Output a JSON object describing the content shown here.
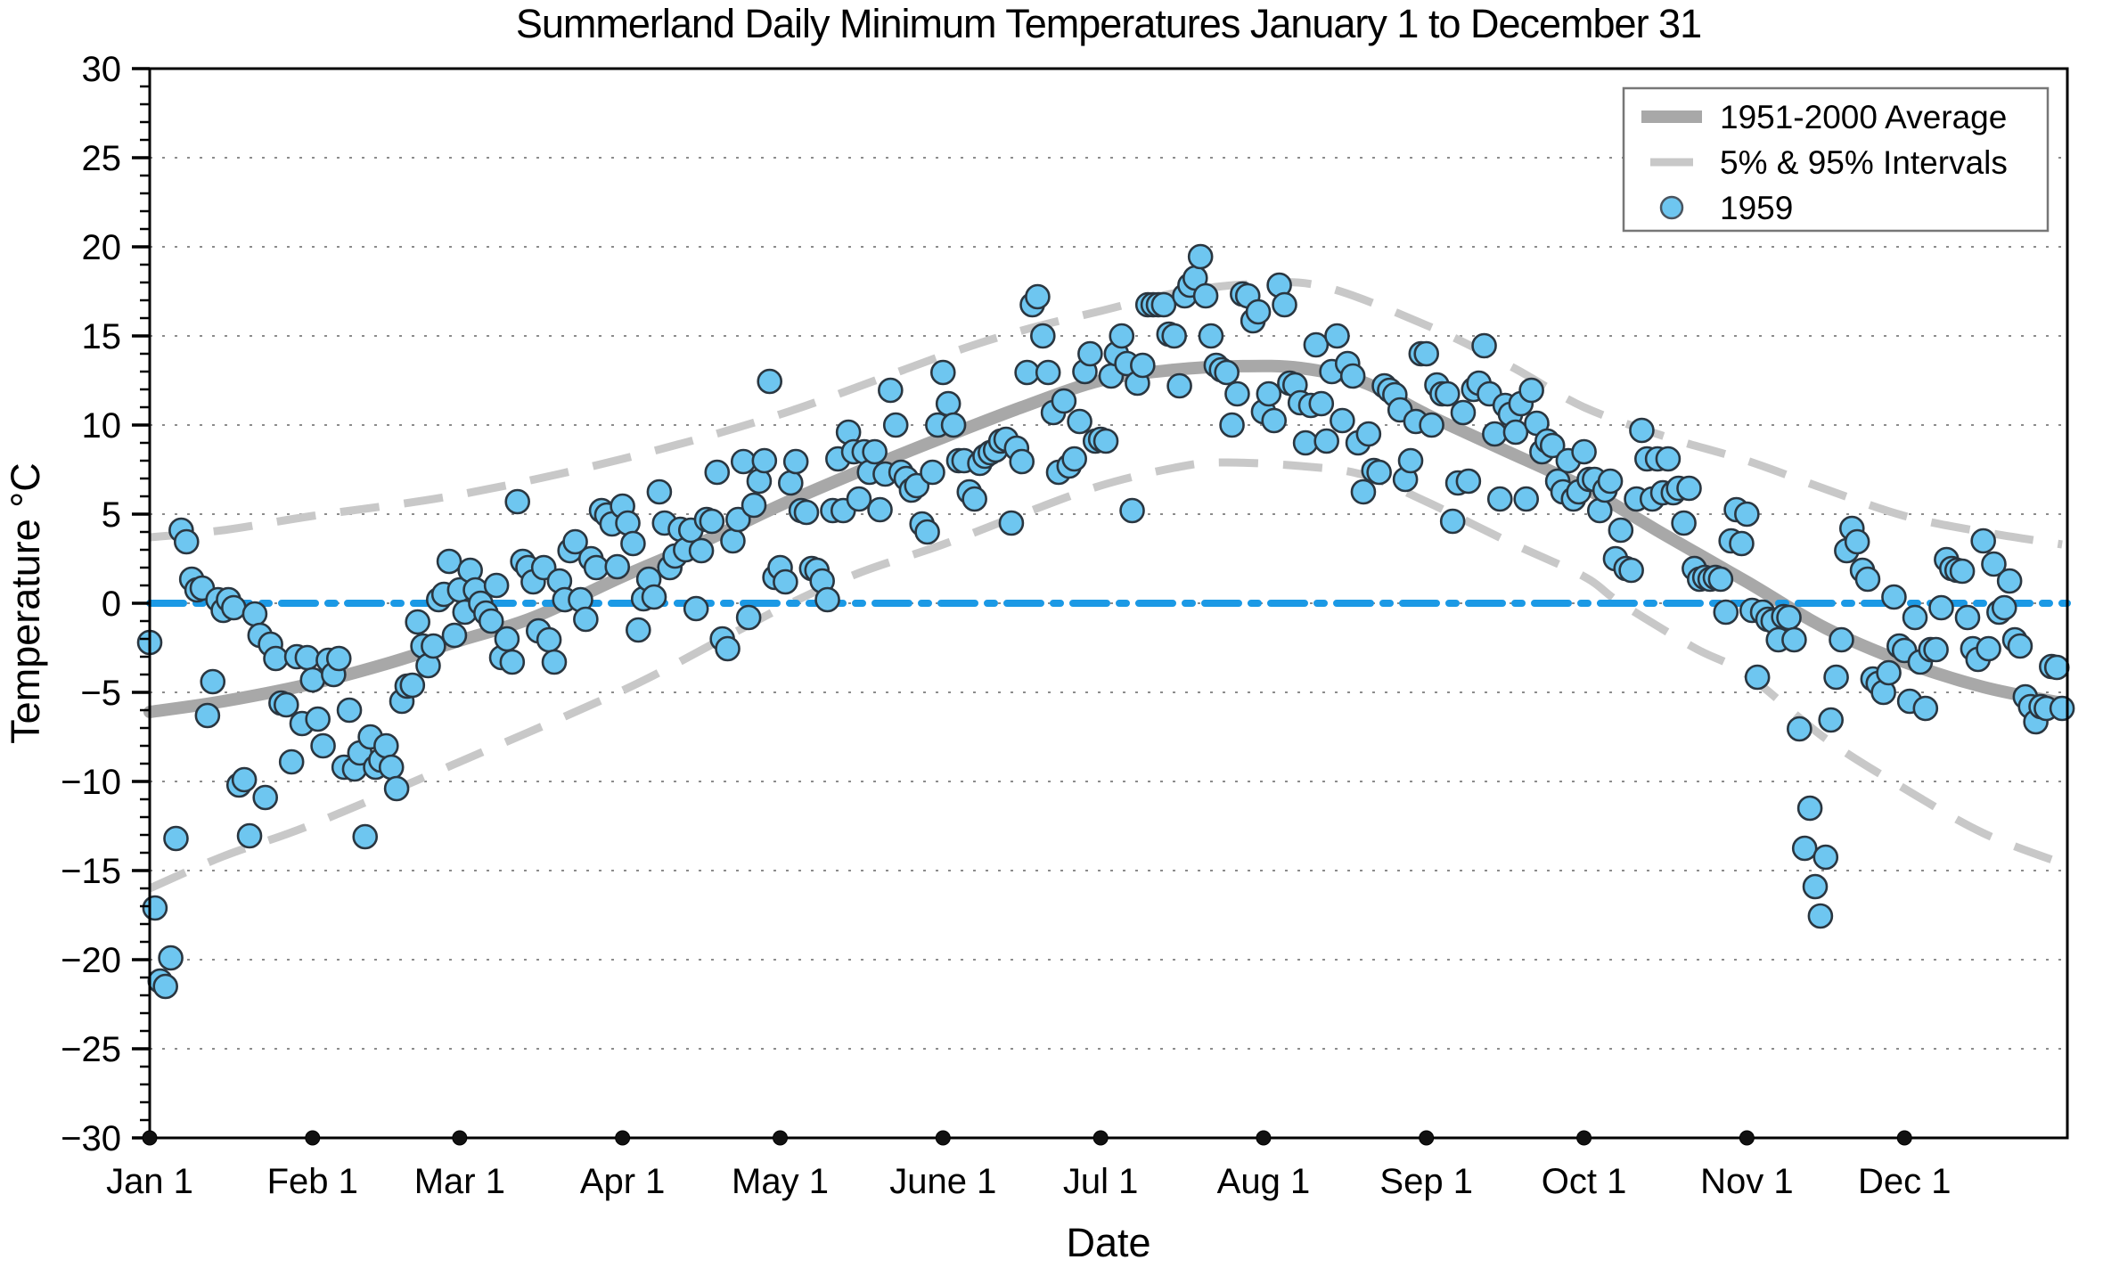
{
  "chart_data": {
    "type": "scatter",
    "title": "Summerland Daily Minimum Temperatures January 1 to December 31",
    "xlabel": "Date",
    "ylabel": "Temperature °C",
    "ylim": [
      -30,
      30
    ],
    "y_ticks": [
      30,
      25,
      20,
      15,
      10,
      5,
      0,
      -5,
      -10,
      -15,
      -20,
      -25,
      -30
    ],
    "y_minor_tick_step": 1,
    "grid": "horizontal dotted lines every 5 degrees",
    "x_range_days": [
      1,
      365
    ],
    "x_ticks": [
      {
        "label": "Jan 1",
        "day": 1
      },
      {
        "label": "Feb 1",
        "day": 32
      },
      {
        "label": "Mar 1",
        "day": 60
      },
      {
        "label": "Apr 1",
        "day": 91
      },
      {
        "label": "May 1",
        "day": 121
      },
      {
        "label": "June 1",
        "day": 152
      },
      {
        "label": "Jul 1",
        "day": 182
      },
      {
        "label": "Aug 1",
        "day": 213
      },
      {
        "label": "Sep 1",
        "day": 244
      },
      {
        "label": "Oct 1",
        "day": 274
      },
      {
        "label": "Nov 1",
        "day": 305
      },
      {
        "label": "Dec 1",
        "day": 335
      }
    ],
    "legend": {
      "position": "upper right",
      "entries": [
        {
          "label": "1951-2000 Average",
          "swatch": "thick-gray-line"
        },
        {
          "label": "5% & 95% Intervals",
          "swatch": "gray-dash"
        },
        {
          "label": "1959",
          "swatch": "blue-dot"
        }
      ]
    },
    "colors": {
      "average_line": "#A8A8A8",
      "interval_dash": "#C8C8C8",
      "zero_line": "#1B99E5",
      "marker_fill": "#6EC6F0",
      "marker_edge": "#2A3640",
      "gridline": "#8C8C8C",
      "axis": "#000000"
    },
    "zero_reference_line": {
      "y": 0,
      "style": "dash-dot"
    },
    "series_average": {
      "name": "1951-2000 Average",
      "points": [
        [
          1,
          -6.1
        ],
        [
          15,
          -5.5
        ],
        [
          32,
          -4.5
        ],
        [
          46,
          -3.4
        ],
        [
          60,
          -2.1
        ],
        [
          74,
          -0.8
        ],
        [
          91,
          1.5
        ],
        [
          106,
          3.4
        ],
        [
          121,
          5.5
        ],
        [
          136,
          7.4
        ],
        [
          152,
          9.3
        ],
        [
          167,
          11.0
        ],
        [
          182,
          12.5
        ],
        [
          196,
          13.1
        ],
        [
          208,
          13.3
        ],
        [
          220,
          13.2
        ],
        [
          232,
          12.4
        ],
        [
          244,
          10.6
        ],
        [
          258,
          8.7
        ],
        [
          274,
          6.5
        ],
        [
          289,
          3.9
        ],
        [
          305,
          1.2
        ],
        [
          320,
          -1.4
        ],
        [
          335,
          -3.3
        ],
        [
          350,
          -4.7
        ],
        [
          365,
          -5.6
        ]
      ]
    },
    "series_95pct": {
      "name": "95% Interval",
      "points": [
        [
          1,
          3.7
        ],
        [
          15,
          4.1
        ],
        [
          32,
          4.9
        ],
        [
          60,
          6.1
        ],
        [
          91,
          8.1
        ],
        [
          121,
          10.6
        ],
        [
          152,
          13.9
        ],
        [
          167,
          15.3
        ],
        [
          182,
          16.4
        ],
        [
          196,
          17.4
        ],
        [
          210,
          17.9
        ],
        [
          224,
          17.8
        ],
        [
          244,
          15.6
        ],
        [
          260,
          13.3
        ],
        [
          274,
          11.0
        ],
        [
          290,
          9.3
        ],
        [
          305,
          8.0
        ],
        [
          320,
          6.4
        ],
        [
          335,
          4.9
        ],
        [
          350,
          4.0
        ],
        [
          365,
          3.3
        ]
      ]
    },
    "series_5pct": {
      "name": "5% Interval",
      "points": [
        [
          1,
          -16.0
        ],
        [
          15,
          -14.2
        ],
        [
          32,
          -12.4
        ],
        [
          60,
          -8.9
        ],
        [
          91,
          -4.9
        ],
        [
          110,
          -2.0
        ],
        [
          123,
          0.0
        ],
        [
          136,
          1.7
        ],
        [
          152,
          3.3
        ],
        [
          167,
          5.0
        ],
        [
          182,
          6.6
        ],
        [
          196,
          7.6
        ],
        [
          205,
          7.9
        ],
        [
          220,
          7.7
        ],
        [
          232,
          7.2
        ],
        [
          244,
          5.7
        ],
        [
          260,
          3.4
        ],
        [
          274,
          1.5
        ],
        [
          281,
          0.0
        ],
        [
          295,
          -2.5
        ],
        [
          305,
          -4.0
        ],
        [
          320,
          -7.6
        ],
        [
          335,
          -10.4
        ],
        [
          350,
          -12.9
        ],
        [
          365,
          -14.6
        ]
      ]
    },
    "series_1959": {
      "name": "1959",
      "month_order": [
        "Jan",
        "Feb",
        "Mar",
        "Apr",
        "May",
        "Jun",
        "Jul",
        "Aug",
        "Sep",
        "Oct",
        "Nov",
        "Dec"
      ],
      "daily_min_temps_c": {
        "Jan": [
          -2.2,
          -17.1,
          -21.2,
          -21.5,
          -19.9,
          -13.2,
          4.1,
          3.45,
          1.35,
          0.75,
          0.85,
          -6.3,
          -4.4,
          0.2,
          -0.4,
          0.2,
          -0.25,
          -10.2,
          -9.9,
          -13.05,
          -0.6,
          -1.8,
          -10.9,
          -2.3,
          -3.1,
          -5.6,
          -5.7,
          -8.9,
          -3.0,
          -6.75,
          -3.05
        ],
        "Feb": [
          -4.3,
          -6.5,
          -8.0,
          -3.2,
          -4.0,
          -3.1,
          -9.2,
          -6.0,
          -9.3,
          -8.4,
          -13.1,
          -7.5,
          -9.2,
          -8.8,
          -8.0,
          -9.2,
          -10.4,
          -5.5,
          -4.65,
          -4.6,
          -1.05,
          -2.4,
          -3.5,
          -2.4,
          0.2,
          0.5,
          2.35,
          -1.8
        ],
        "Mar": [
          0.75,
          -0.5,
          1.85,
          0.75,
          0.0,
          -0.55,
          -1.0,
          1.0,
          -3.05,
          -2.0,
          -3.3,
          5.7,
          2.35,
          2.0,
          1.2,
          -1.55,
          2.0,
          -2.05,
          -3.3,
          1.25,
          0.2,
          2.95,
          3.45,
          0.2,
          -0.9,
          2.5,
          2.0,
          5.2,
          4.95,
          4.45,
          2.05
        ],
        "Apr": [
          5.45,
          4.5,
          3.35,
          -1.5,
          0.25,
          1.35,
          0.35,
          6.25,
          4.5,
          2.0,
          2.65,
          4.15,
          3.0,
          4.1,
          -0.3,
          2.95,
          4.7,
          4.6,
          7.35,
          -2.0,
          -2.55,
          3.5,
          4.7,
          7.95,
          -0.8,
          5.5,
          6.85,
          8.0,
          12.45,
          1.45
        ],
        "May": [
          2.0,
          1.2,
          6.75,
          7.95,
          5.2,
          5.1,
          1.95,
          1.85,
          1.25,
          0.2,
          5.2,
          8.1,
          5.2,
          9.6,
          8.5,
          5.85,
          8.5,
          7.35,
          8.5,
          5.25,
          7.25,
          11.95,
          10.0,
          7.35,
          7.0,
          6.35,
          6.6,
          4.45,
          4.0,
          7.35,
          10.0
        ],
        "Jun": [
          12.95,
          11.2,
          10.0,
          8.0,
          8.0,
          6.25,
          5.85,
          7.85,
          8.25,
          8.45,
          8.6,
          9.1,
          9.2,
          4.5,
          8.7,
          7.95,
          12.95,
          16.75,
          17.2,
          15.0,
          12.95,
          10.7,
          7.35,
          11.35,
          7.7,
          8.1,
          10.2,
          13.0,
          14.0,
          9.1
        ],
        "Jul": [
          9.2,
          9.1,
          12.75,
          14.0,
          15.0,
          13.45,
          5.2,
          12.35,
          13.35,
          16.75,
          16.75,
          16.75,
          16.75,
          15.1,
          15.0,
          12.2,
          17.25,
          17.85,
          18.25,
          19.45,
          17.25,
          15.0,
          13.35,
          13.1,
          12.95,
          10.0,
          11.75,
          17.35,
          17.25,
          15.85,
          16.35
        ],
        "Aug": [
          10.75,
          11.75,
          10.25,
          17.85,
          16.75,
          12.35,
          12.25,
          11.25,
          9.0,
          11.1,
          14.5,
          11.2,
          9.1,
          13.0,
          15.0,
          10.25,
          13.45,
          12.75,
          9.0,
          6.25,
          9.5,
          7.45,
          7.35,
          12.2,
          11.95,
          11.7,
          10.85,
          6.95,
          8.0,
          10.2,
          14.0
        ],
        "Sep": [
          14.0,
          10.0,
          12.25,
          11.75,
          11.75,
          4.6,
          6.75,
          10.7,
          6.85,
          12.0,
          12.35,
          14.45,
          11.75,
          9.5,
          5.85,
          11.1,
          10.6,
          9.6,
          11.2,
          5.85,
          11.95,
          10.1,
          8.5,
          9.1,
          8.85,
          6.85,
          6.25,
          8.0,
          5.85,
          6.25
        ],
        "Oct": [
          8.5,
          6.95,
          6.95,
          5.2,
          6.35,
          6.85,
          2.5,
          4.1,
          1.95,
          1.85,
          5.85,
          9.7,
          8.1,
          5.85,
          8.1,
          6.2,
          8.1,
          6.2,
          6.45,
          4.5,
          6.45,
          1.95,
          1.35,
          1.45,
          1.35,
          1.45,
          1.35,
          -0.5,
          3.5,
          5.25,
          3.35
        ],
        "Nov": [
          5.0,
          -0.4,
          -4.15,
          -0.5,
          -0.9,
          -1.0,
          -2.05,
          -0.75,
          -0.8,
          -2.05,
          -7.05,
          -13.75,
          -11.5,
          -15.9,
          -17.55,
          -14.25,
          -6.55,
          -4.15,
          -2.05,
          2.95,
          4.2,
          3.45,
          1.85,
          1.35,
          -4.25,
          -4.5,
          -5.0,
          -3.9,
          0.35,
          -2.4
        ],
        "Dec": [
          -2.65,
          -5.5,
          -0.8,
          -3.3,
          -5.9,
          -2.6,
          -2.6,
          -0.25,
          2.45,
          1.95,
          1.85,
          1.8,
          -0.8,
          -2.55,
          -3.15,
          3.5,
          -2.55,
          2.2,
          -0.5,
          -0.25,
          1.25,
          -2.05,
          -2.4,
          -5.25,
          -5.8,
          -6.65,
          -5.8,
          -5.9,
          -3.55,
          -3.6,
          -5.9
        ]
      }
    }
  }
}
